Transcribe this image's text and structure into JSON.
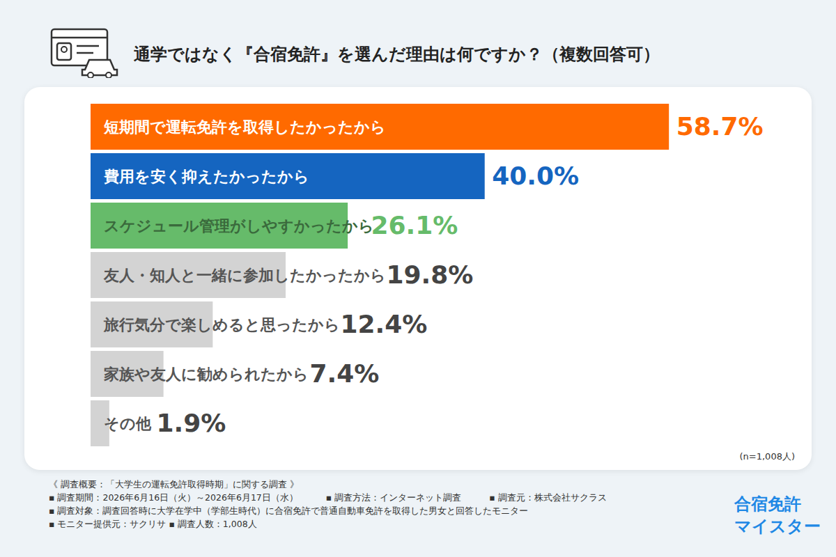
{
  "chart_data": {
    "type": "bar",
    "title": "通学ではなく『合宿免許』を選んだ理由は何ですか？（複数回答可）",
    "orientation": "horizontal",
    "categories": [
      "短期間で運転免許を取得したかったから",
      "費用を安く抑えたかったから",
      "スケジュール管理がしやすかったから",
      "友人・知人と一緒に参加したかったから",
      "旅行気分で楽しめると思ったから",
      "家族や友人に勧められたから",
      "その他"
    ],
    "values": [
      58.7,
      40.0,
      26.1,
      19.8,
      12.4,
      7.4,
      1.9
    ],
    "value_labels": [
      "58.7%",
      "40.0%",
      "26.1%",
      "19.8%",
      "12.4%",
      "7.4%",
      "1.9%"
    ],
    "colors": [
      "#ff6a00",
      "#1565c0",
      "#66bb6a",
      "#d3d3d3",
      "#d3d3d3",
      "#d3d3d3",
      "#d3d3d3"
    ],
    "xlim": [
      0,
      70
    ],
    "data_labels": true,
    "tick_labels": false,
    "grid": false,
    "annotations": [
      "(n=1,008人)"
    ]
  },
  "footer": {
    "rows": [
      [
        "《 調査概要：「大学生の運転免許取得時期」に関する調査 》"
      ],
      [
        "▪ 調査期間：2026年6月16日（火）～2026年6月17日（水）",
        "▪ 調査方法：インターネット調査",
        "▪ 調査元：株式会社サクラス"
      ],
      [
        "▪ 調査対象：調査回答時に大学在学中（学部生時代）に合宿免許で普通自動車免許を取得した男女と回答したモニター"
      ],
      [
        "▪ モニター提供元：サクリサ ▪ 調査人数：1,008人"
      ]
    ]
  },
  "brand": [
    "合宿免許",
    "マイスター"
  ]
}
